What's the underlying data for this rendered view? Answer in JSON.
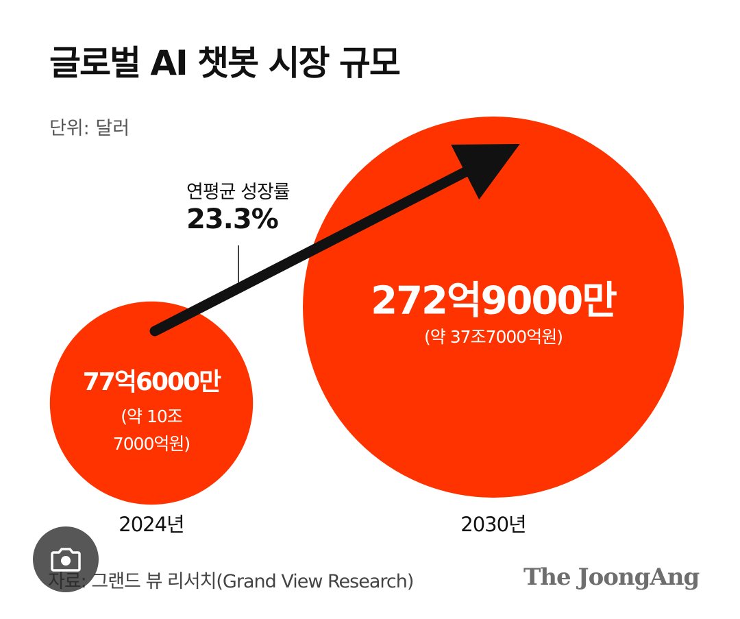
{
  "title": "글로벌 AI 챗봇 시장 규모",
  "unit_label": "단위: 달러",
  "growth": {
    "label": "연평균 성장률",
    "value": "23.3%"
  },
  "chart_data": {
    "type": "bubble",
    "title": "글로벌 AI 챗봇 시장 규모",
    "unit": "단위: 달러",
    "categories": [
      "2024년",
      "2030년"
    ],
    "values": [
      7760000000,
      27290000000
    ],
    "value_labels": [
      "77억6000만",
      "272억9000만"
    ],
    "krw_labels": [
      "(약 10조\n7000억원)",
      "(약 37조7000억원)"
    ],
    "growth_label": "연평균 성장률",
    "growth_value": "23.3%",
    "bubble_color": "#ff3300",
    "arrow_color": "#111111"
  },
  "source": "자료: 그랜드 뷰 리서치(Grand View Research)",
  "brand": "The JoongAng",
  "colors": {
    "bubble": "#ff3300",
    "text": "#111111",
    "muted": "#555555"
  },
  "overlay_icon": "lens-camera-icon"
}
